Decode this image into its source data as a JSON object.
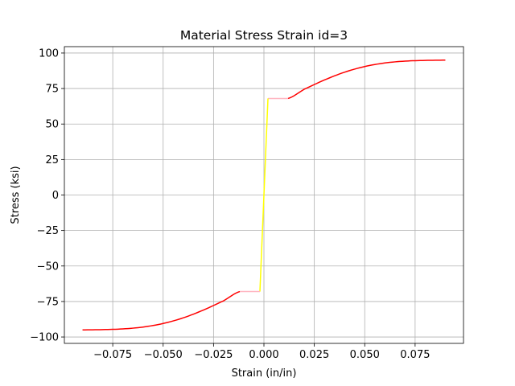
{
  "chart_data": {
    "type": "line",
    "title": "Material Stress Strain id=3",
    "xlabel": "Strain (in/in)",
    "ylabel": "Stress (ksi)",
    "xlim": [
      -0.099,
      0.099
    ],
    "ylim": [
      -104.5,
      104.5
    ],
    "grid": true,
    "legend": "none",
    "xticks": [
      -0.075,
      -0.05,
      -0.025,
      0.0,
      0.025,
      0.05,
      0.075
    ],
    "xtick_labels": [
      "−0.075",
      "−0.050",
      "−0.025",
      "0.000",
      "0.025",
      "0.050",
      "0.075"
    ],
    "yticks": [
      100,
      75,
      50,
      25,
      0,
      -25,
      -50,
      -75,
      -100
    ],
    "ytick_labels": [
      "100",
      "75",
      "50",
      "25",
      "0",
      "−25",
      "−50",
      "−75",
      "−100"
    ],
    "series": [
      {
        "color": "#ff0000",
        "x": [
          0.012,
          0.02,
          0.03,
          0.04,
          0.05,
          0.06,
          0.07,
          0.08,
          0.09
        ],
        "y": [
          68,
          74.5,
          81,
          86.5,
          90.5,
          93,
          94.3,
          94.8,
          95
        ]
      },
      {
        "color": "#ffb6c1",
        "x": [
          0.002,
          0.012
        ],
        "y": [
          68,
          68
        ]
      },
      {
        "color": "#ffff00",
        "x": [
          -0.002,
          0.002
        ],
        "y": [
          -68,
          68
        ]
      },
      {
        "color": "#ffb6c1",
        "x": [
          -0.012,
          -0.002
        ],
        "y": [
          -68,
          -68
        ]
      },
      {
        "color": "#ff0000",
        "x": [
          -0.09,
          -0.08,
          -0.07,
          -0.06,
          -0.05,
          -0.04,
          -0.03,
          -0.02,
          -0.012
        ],
        "y": [
          -95,
          -94.8,
          -94.3,
          -93,
          -90.5,
          -86.5,
          -81,
          -74.5,
          -68
        ]
      }
    ]
  }
}
